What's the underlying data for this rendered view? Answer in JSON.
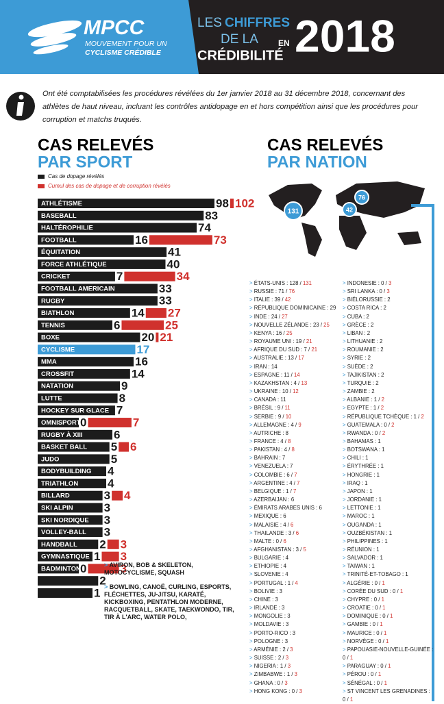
{
  "header": {
    "logo": "MPCC",
    "logo_sub_1": "MOUVEMENT POUR UN",
    "logo_sub_2": "CYCLISME CRÉDIBLE",
    "title_1": "LES",
    "title_2": "CHIFFRES",
    "title_3": "DE LA",
    "title_4": "CRÉDIBILITÉ",
    "title_5": "EN",
    "year": "2018"
  },
  "intro": "Ont été comptabilisées les procédures révélées du 1er janvier 2018 au 31 décembre 2018, concernant des athlètes de haut niveau, incluant les contrôles antidopage en et hors compétition ainsi que les procédures pour corruption et matchs truqués.",
  "chart_data": {
    "type": "bar",
    "orientation": "horizontal",
    "title": "CAS RELEVÉS",
    "subtitle": "PAR SPORT",
    "categories": [
      "ATHLÉTISME",
      "BASEBALL",
      "HALTÉROPHILIE",
      "FOOTBALL",
      "ÉQUITATION",
      "FORCE ATHLÉTIQUE",
      "CRICKET",
      "FOOTBALL AMERICAIN",
      "RUGBY",
      "BIATHLON",
      "TENNIS",
      "BOXE",
      "CYCLISME",
      "MMA",
      "CROSSFIT",
      "NATATION",
      "LUTTE",
      "HOCKEY SUR GLACE",
      "OMNISPORTS",
      "RUGBY À XIII",
      "BASKET BALL",
      "JUDO",
      "BODYBUILDING",
      "TRIATHLON",
      "BILLARD",
      "SKI ALPIN",
      "SKI NORDIQUE",
      "VOLLEY-BALL",
      "HANDBALL",
      "GYMNASTIQUE",
      "BADMINTON",
      null,
      null
    ],
    "series": [
      {
        "name": "Cas de dopage révélés",
        "color": "#1c1c1c",
        "values": [
          98,
          83,
          74,
          16,
          41,
          40,
          7,
          33,
          33,
          14,
          6,
          20,
          17,
          16,
          14,
          9,
          8,
          7,
          0,
          6,
          5,
          5,
          4,
          4,
          3,
          3,
          3,
          3,
          2,
          1,
          0,
          2,
          1
        ]
      },
      {
        "name": "Cumul des cas de dopage et de corruption révélés",
        "color": "#d0312d",
        "values": [
          102,
          null,
          null,
          73,
          null,
          null,
          34,
          null,
          null,
          27,
          25,
          21,
          null,
          null,
          null,
          null,
          null,
          null,
          7,
          null,
          6,
          null,
          null,
          null,
          4,
          null,
          null,
          null,
          3,
          3,
          3,
          null,
          null
        ]
      }
    ],
    "highlight_index": 12,
    "highlight_color": "#3d9bd6",
    "annotations": [
      "AVIRON, BOB & SKELETON, MOTOCYCLISME, SQUASH",
      "BOWLING, CANOË, CURLING, ESPORTS, FLÉCHETTES, JU-JITSU, KARATÉ, KICKBOXING, PENTATHLON MODERNE, RACQUETBALL, SKATE, TAEKWONDO, TIR, TIR À L'ARC, WATER POLO,"
    ]
  },
  "nations": {
    "title": "CAS RELEVÉS",
    "subtitle": "PAR NATION",
    "map_pins": [
      131,
      42,
      76
    ],
    "left": [
      {
        "name": "ÉTATS-UNIS",
        "doping": 128,
        "cumul": 131
      },
      {
        "name": "RUSSIE",
        "doping": 71,
        "cumul": 76
      },
      {
        "name": "ITALIE",
        "doping": 39,
        "cumul": 42
      },
      {
        "name": "RÉPUBLIQUE DOMINICAINE",
        "doping": 29
      },
      {
        "name": "INDE",
        "doping": 24,
        "cumul": 27
      },
      {
        "name": "NOUVELLE ZÉLANDE",
        "doping": 23,
        "cumul": 25
      },
      {
        "name": "KENYA",
        "doping": 16,
        "cumul": 25
      },
      {
        "name": "ROYAUME UNI",
        "doping": 19,
        "cumul": 21
      },
      {
        "name": "AFRIQUE DU SUD",
        "doping": 7,
        "cumul": 21
      },
      {
        "name": "AUSTRALIE",
        "doping": 13,
        "cumul": 17
      },
      {
        "name": "IRAN",
        "doping": 14
      },
      {
        "name": "ESPAGNE",
        "doping": 11,
        "cumul": 14
      },
      {
        "name": "KAZAKHSTAN",
        "doping": 4,
        "cumul": 13
      },
      {
        "name": "UKRAINE",
        "doping": 10,
        "cumul": 12
      },
      {
        "name": "CANADA",
        "doping": 11
      },
      {
        "name": "BRÉSIL",
        "doping": 9,
        "cumul": 11
      },
      {
        "name": "SERBIE",
        "doping": 9,
        "cumul": 10
      },
      {
        "name": "ALLEMAGNE",
        "doping": 4,
        "cumul": 9
      },
      {
        "name": "AUTRICHE",
        "doping": 8
      },
      {
        "name": "FRANCE",
        "doping": 4,
        "cumul": 8
      },
      {
        "name": "PAKISTAN",
        "doping": 4,
        "cumul": 8
      },
      {
        "name": "BAHRAIN",
        "doping": 7
      },
      {
        "name": "VENEZUELA",
        "doping": 7
      },
      {
        "name": "COLOMBIE",
        "doping": 6,
        "cumul": 7
      },
      {
        "name": "ARGENTINE",
        "doping": 4,
        "cumul": 7
      },
      {
        "name": "BELGIQUE",
        "doping": 1,
        "cumul": 7
      },
      {
        "name": "AZERBAIJAN",
        "doping": 6
      },
      {
        "name": "ÉMIRATS ARABES UNIS",
        "doping": 6
      },
      {
        "name": "MEXIQUE",
        "doping": 6
      },
      {
        "name": "MALAISIE",
        "doping": 4,
        "cumul": 6
      },
      {
        "name": "THAILANDE",
        "doping": 3,
        "cumul": 6
      },
      {
        "name": "MALTE",
        "doping": 0,
        "cumul": 6
      },
      {
        "name": "AFGHANISTAN",
        "doping": 3,
        "cumul": 5
      },
      {
        "name": "BULGARIE",
        "doping": 4
      },
      {
        "name": "ETHIOPIE",
        "doping": 4
      },
      {
        "name": "SLOVENIE",
        "doping": 4
      },
      {
        "name": "PORTUGAL",
        "doping": 1,
        "cumul": 4
      },
      {
        "name": "BOLIVIE",
        "doping": 3
      },
      {
        "name": "CHINE",
        "doping": 3
      },
      {
        "name": "IRLANDE",
        "doping": 3
      },
      {
        "name": "MONGOLIE",
        "doping": 3
      },
      {
        "name": "MOLDAVIE",
        "doping": 3
      },
      {
        "name": "PORTO-RICO",
        "doping": 3
      },
      {
        "name": "POLOGNE",
        "doping": 3
      },
      {
        "name": "ARMÉNIE",
        "doping": 2,
        "cumul": 3
      },
      {
        "name": "SUISSE",
        "doping": 2,
        "cumul": 3
      },
      {
        "name": "NIGERIA",
        "doping": 1,
        "cumul": 3
      },
      {
        "name": "ZIMBABWE",
        "doping": 1,
        "cumul": 3
      },
      {
        "name": "GHANA",
        "doping": 0,
        "cumul": 3
      },
      {
        "name": "HONG KONG",
        "doping": 0,
        "cumul": 3
      }
    ],
    "right": [
      {
        "name": "INDONESIE",
        "doping": 0,
        "cumul": 3
      },
      {
        "name": "SRI LANKA",
        "doping": 0,
        "cumul": 3
      },
      {
        "name": "BIÉLORUSSIE",
        "doping": 2
      },
      {
        "name": "COSTA RICA",
        "doping": 2
      },
      {
        "name": "CUBA",
        "doping": 2
      },
      {
        "name": "GRÈCE",
        "doping": 2
      },
      {
        "name": "LIBAN",
        "doping": 2
      },
      {
        "name": "LITHUANIE",
        "doping": 2
      },
      {
        "name": "ROUMANIE",
        "doping": 2
      },
      {
        "name": "SYRIE",
        "doping": 2
      },
      {
        "name": "SUÈDE",
        "doping": 2
      },
      {
        "name": "TAJIKISTAN",
        "doping": 2
      },
      {
        "name": "TURQUIE",
        "doping": 2
      },
      {
        "name": "ZAMBIE",
        "doping": 2
      },
      {
        "name": "ALBANIE",
        "doping": 1,
        "cumul": 2
      },
      {
        "name": "EGYPTE",
        "doping": 1,
        "cumul": 2
      },
      {
        "name": "RÉPUBLIQUE TCHÈQUE",
        "doping": 1,
        "cumul": 2
      },
      {
        "name": "GUATEMALA",
        "doping": 0,
        "cumul": 2
      },
      {
        "name": "RWANDA",
        "doping": 0,
        "cumul": 2
      },
      {
        "name": "BAHAMAS",
        "doping": 1
      },
      {
        "name": "BOTSWANA",
        "doping": 1
      },
      {
        "name": "CHILI",
        "doping": 1
      },
      {
        "name": "ÉRYTHRÉE",
        "doping": 1
      },
      {
        "name": "HONGRIE",
        "doping": 1
      },
      {
        "name": "IRAQ",
        "doping": 1
      },
      {
        "name": "JAPON",
        "doping": 1
      },
      {
        "name": "JORDANIE",
        "doping": 1
      },
      {
        "name": "LETTONIE",
        "doping": 1
      },
      {
        "name": "MAROC",
        "doping": 1
      },
      {
        "name": "OUGANDA",
        "doping": 1
      },
      {
        "name": "OUZBÉKISTAN",
        "doping": 1
      },
      {
        "name": "PHILIPPINES",
        "doping": 1
      },
      {
        "name": "RÉUNION",
        "doping": 1
      },
      {
        "name": "SALVADOR",
        "doping": 1
      },
      {
        "name": "TAIWAN",
        "doping": 1
      },
      {
        "name": "TRINITÉ-ET-TOBAGO",
        "doping": 1
      },
      {
        "name": "ALGÉRIE",
        "doping": 0,
        "cumul": 1
      },
      {
        "name": "CORÉE DU SUD",
        "doping": 0,
        "cumul": 1
      },
      {
        "name": "CHYPRE",
        "doping": 0,
        "cumul": 1
      },
      {
        "name": "CROATIE",
        "doping": 0,
        "cumul": 1
      },
      {
        "name": "DOMINIQUE",
        "doping": 0,
        "cumul": 1
      },
      {
        "name": "GAMBIE",
        "doping": 0,
        "cumul": 1
      },
      {
        "name": "MAURICE",
        "doping": 0,
        "cumul": 1
      },
      {
        "name": "NORVÈGE",
        "doping": 0,
        "cumul": 1
      },
      {
        "name": "PAPOUASIE-NOUVELLE-GUINÉE",
        "doping": 0,
        "cumul": 1
      },
      {
        "name": "PARAGUAY",
        "doping": 0,
        "cumul": 1
      },
      {
        "name": "PÉROU",
        "doping": 0,
        "cumul": 1
      },
      {
        "name": "SÉNÉGAL",
        "doping": 0,
        "cumul": 1
      },
      {
        "name": "ST VINCENT LES GRENADINES",
        "doping": 0,
        "cumul": 1
      }
    ]
  }
}
